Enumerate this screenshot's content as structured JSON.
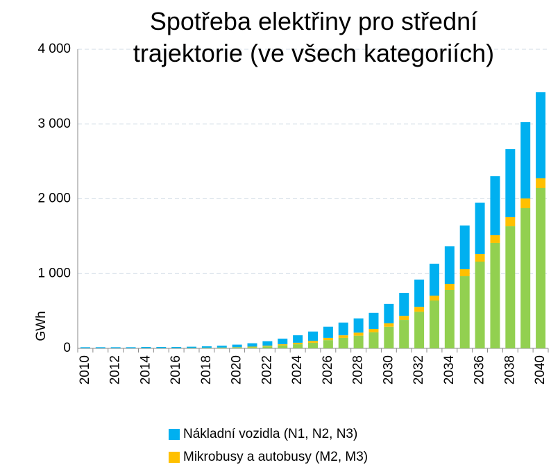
{
  "chart_data": {
    "type": "bar",
    "stacked": true,
    "title": "Spotřeba elektřiny pro střední\ntrajektorie (ve všech kategoriích)",
    "y_label": "GWh",
    "categories": [
      "2010",
      null,
      "2012",
      null,
      "2014",
      null,
      "2016",
      null,
      "2018",
      null,
      "2020",
      null,
      "2022",
      null,
      "2024",
      null,
      "2026",
      null,
      "2028",
      null,
      "2030",
      null,
      "2032",
      null,
      "2034",
      null,
      "2036",
      null,
      "2038",
      null,
      "2040"
    ],
    "series": [
      {
        "name": "Nákladní vozidla (N1, N2, N3)",
        "color": "#00b0f0",
        "values": [
          13,
          13,
          13,
          13,
          15,
          15,
          15,
          17,
          20,
          25,
          35,
          45,
          60,
          75,
          100,
          125,
          150,
          170,
          190,
          215,
          260,
          307,
          365,
          427,
          501,
          585,
          687,
          789,
          910,
          1020,
          1151
        ]
      },
      {
        "name": "Mikrobusy a autobusy (M2, M3)",
        "color": "#ffc000",
        "values": [
          1,
          1,
          1,
          1,
          1,
          1,
          1,
          2,
          3,
          4,
          5,
          8,
          10,
          15,
          20,
          25,
          30,
          35,
          40,
          45,
          45,
          55,
          65,
          65,
          83,
          93,
          102,
          102,
          121,
          130,
          130
        ]
      },
      {
        "color": "#92d050",
        "values": [
          1,
          1,
          1,
          1,
          2,
          2,
          2,
          3,
          4,
          6,
          10,
          15,
          25,
          40,
          55,
          75,
          110,
          140,
          170,
          215,
          290,
          380,
          490,
          640,
          780,
          965,
          1160,
          1411,
          1633,
          1875,
          2144
        ]
      }
    ],
    "ylim": [
      0,
      4000
    ],
    "yticks": [
      0,
      {
        "value": 1000,
        "label": "1 000"
      },
      {
        "value": 2000,
        "label": "2 000"
      },
      {
        "value": 3000,
        "label": "3 000"
      },
      {
        "value": 4000,
        "label": "4 000"
      }
    ],
    "grid": true
  }
}
